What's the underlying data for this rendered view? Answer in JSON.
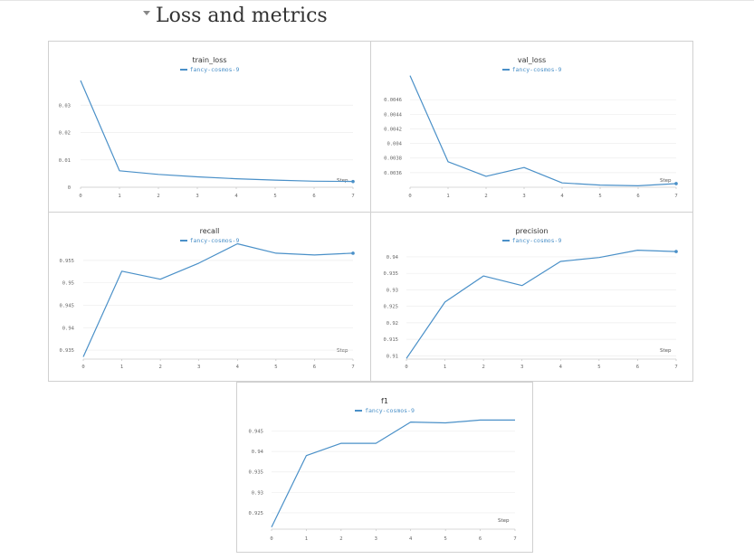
{
  "section": {
    "title": "Loss and metrics"
  },
  "chart_data": [
    {
      "id": "train_loss",
      "type": "line",
      "title": "train_loss",
      "legend": "fancy-cosmos-9",
      "xlabel": "Step",
      "x": [
        0,
        1,
        2,
        3,
        4,
        5,
        6,
        7
      ],
      "series": [
        {
          "name": "fancy-cosmos-9",
          "values": [
            0.039,
            0.006,
            0.0047,
            0.0038,
            0.0031,
            0.0026,
            0.0022,
            0.0021
          ]
        }
      ],
      "ylim": [
        0,
        0.04
      ],
      "yticks": [
        0,
        0.01,
        0.02,
        0.03
      ],
      "ytick_labels": [
        "0",
        "0.01",
        "0.02",
        "0.03"
      ],
      "xticks": [
        0,
        1,
        2,
        3,
        4,
        5,
        6,
        7
      ],
      "grid": true
    },
    {
      "id": "val_loss",
      "type": "line",
      "title": "val_loss",
      "legend": "fancy-cosmos-9",
      "xlabel": "Step",
      "x": [
        0,
        1,
        2,
        3,
        4,
        5,
        6,
        7
      ],
      "series": [
        {
          "name": "fancy-cosmos-9",
          "values": [
            0.00493,
            0.00375,
            0.00355,
            0.00367,
            0.00346,
            0.00343,
            0.00342,
            0.00345
          ]
        }
      ],
      "ylim": [
        0.0034,
        0.0049
      ],
      "yticks": [
        0.0036,
        0.0038,
        0.004,
        0.0042,
        0.0044,
        0.0046
      ],
      "ytick_labels": [
        "0.0036",
        "0.0038",
        "0.004",
        "0.0042",
        "0.0044",
        "0.0046"
      ],
      "xticks": [
        0,
        1,
        2,
        3,
        4,
        5,
        6,
        7
      ],
      "grid": true
    },
    {
      "id": "recall",
      "type": "line",
      "title": "recall",
      "legend": "fancy-cosmos-9",
      "xlabel": "Step",
      "x": [
        0,
        1,
        2,
        3,
        4,
        5,
        6,
        7
      ],
      "series": [
        {
          "name": "fancy-cosmos-9",
          "values": [
            0.9335,
            0.9526,
            0.9508,
            0.9544,
            0.9587,
            0.9566,
            0.9562,
            0.9566
          ]
        }
      ],
      "ylim": [
        0.933,
        0.958
      ],
      "yticks": [
        0.935,
        0.94,
        0.945,
        0.95,
        0.955
      ],
      "ytick_labels": [
        "0.935",
        "0.94",
        "0.945",
        "0.95",
        "0.955"
      ],
      "xticks": [
        0,
        1,
        2,
        3,
        4,
        5,
        6,
        7
      ],
      "grid": true
    },
    {
      "id": "precision",
      "type": "line",
      "title": "precision",
      "legend": "fancy-cosmos-9",
      "xlabel": "Step",
      "x": [
        0,
        1,
        2,
        3,
        4,
        5,
        6,
        7
      ],
      "series": [
        {
          "name": "fancy-cosmos-9",
          "values": [
            0.9092,
            0.9263,
            0.9342,
            0.9313,
            0.9386,
            0.9398,
            0.942,
            0.9416
          ]
        }
      ],
      "ylim": [
        0.909,
        0.943
      ],
      "yticks": [
        0.91,
        0.915,
        0.92,
        0.925,
        0.93,
        0.935,
        0.94
      ],
      "ytick_labels": [
        "0.91",
        "0.915",
        "0.92",
        "0.925",
        "0.93",
        "0.935",
        "0.94"
      ],
      "xticks": [
        0,
        1,
        2,
        3,
        4,
        5,
        6,
        7
      ],
      "grid": true
    },
    {
      "id": "f1",
      "type": "line",
      "title": "f1",
      "legend": "fancy-cosmos-9",
      "xlabel": "Step",
      "x": [
        0,
        1,
        2,
        3,
        4,
        5,
        6,
        7
      ],
      "series": [
        {
          "name": "fancy-cosmos-9",
          "values": [
            0.9215,
            0.939,
            0.942,
            0.942,
            0.9472,
            0.947,
            0.9477,
            0.9477
          ]
        }
      ],
      "ylim": [
        0.921,
        0.948
      ],
      "yticks": [
        0.925,
        0.93,
        0.935,
        0.94,
        0.945
      ],
      "ytick_labels": [
        "0.925",
        "0.93",
        "0.935",
        "0.94",
        "0.945"
      ],
      "xticks": [
        0,
        1,
        2,
        3,
        4,
        5,
        6,
        7
      ],
      "grid": true
    }
  ]
}
